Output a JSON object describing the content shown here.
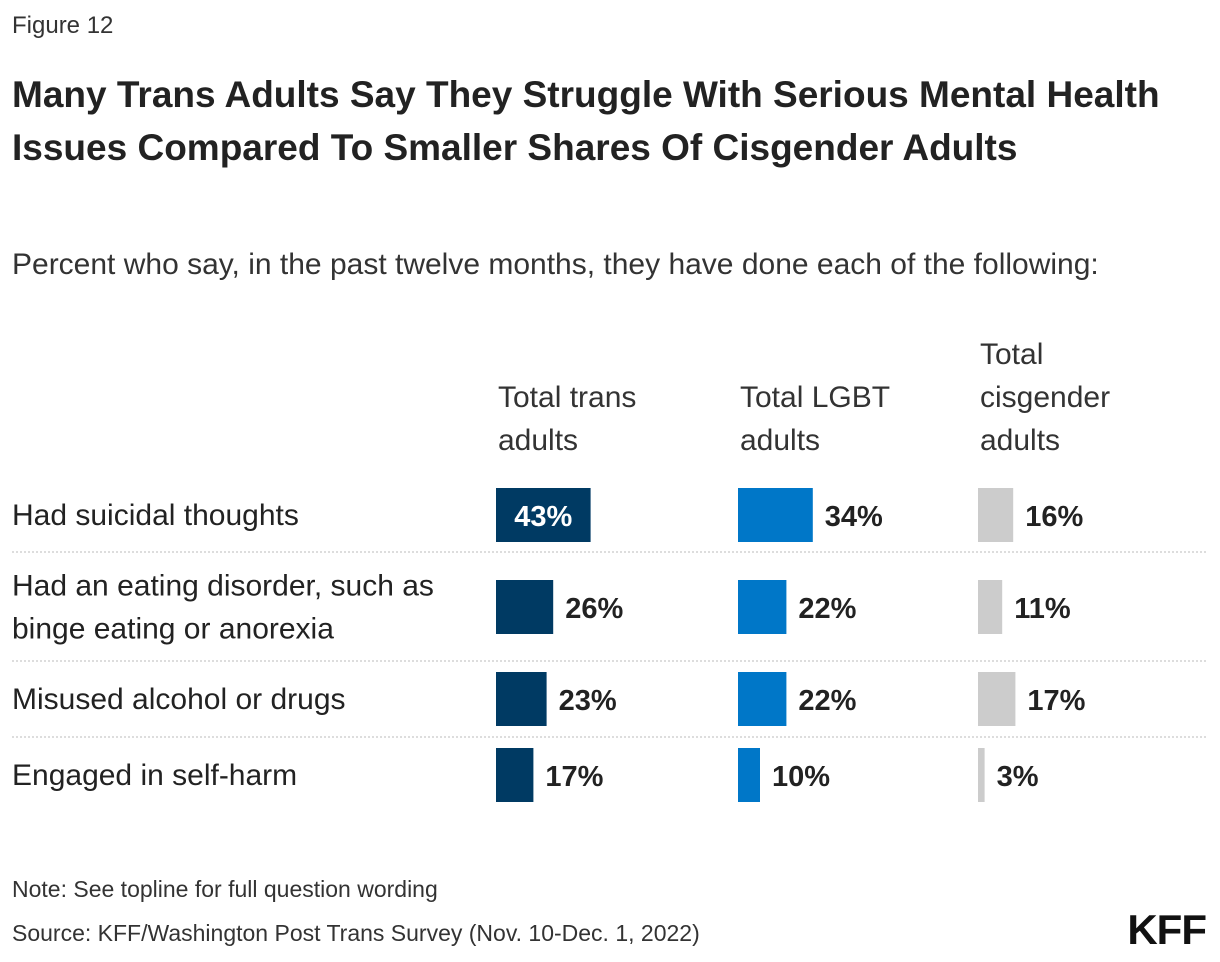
{
  "figure_label": "Figure 12",
  "title": "Many Trans Adults Say They Struggle With Serious Mental Health Issues Compared To Smaller Shares Of Cisgender Adults",
  "subtitle": "Percent who say, in the past twelve months, they have done each of the following:",
  "note": "Note: See topline for full question wording",
  "source": "Source: KFF/Washington Post Trans Survey (Nov. 10-Dec. 1, 2022)",
  "logo": "KFF",
  "chart_data": {
    "type": "bar",
    "orientation": "horizontal",
    "layout": "small-multiples",
    "categories": [
      "Had suicidal thoughts",
      "Had an eating disorder, such as binge eating or anorexia",
      "Misused alcohol or drugs",
      "Engaged in self-harm"
    ],
    "series": [
      {
        "name": "Total trans adults",
        "color": "#003a63",
        "values": [
          43,
          26,
          23,
          17
        ]
      },
      {
        "name": "Total LGBT adults",
        "color": "#0077c8",
        "values": [
          34,
          22,
          22,
          10
        ]
      },
      {
        "name": "Total cisgender adults",
        "color": "#cccccc",
        "values": [
          16,
          11,
          17,
          3
        ]
      }
    ],
    "value_suffix": "%",
    "xlim": [
      0,
      100
    ]
  }
}
